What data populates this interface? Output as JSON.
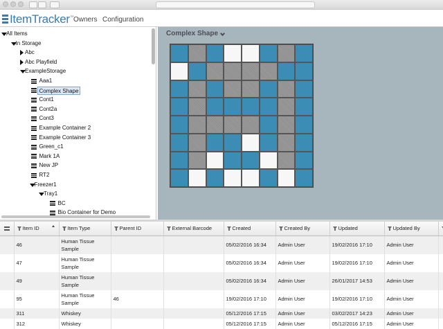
{
  "app": {
    "logo": "ItemTracker",
    "trademark": "™",
    "nav": [
      "Owners",
      "Configuration"
    ]
  },
  "tree": [
    {
      "label": "All Items",
      "expanded": true,
      "children": [
        {
          "label": "In Storage",
          "expanded": true,
          "children": [
            {
              "label": "Abc",
              "expanded": false
            },
            {
              "label": "Abc Playfield",
              "expanded": false
            },
            {
              "label": "ExampleStorage",
              "expanded": true,
              "children": [
                {
                  "label": "Aaa1"
                },
                {
                  "label": "Complex Shape",
                  "selected": true
                },
                {
                  "label": "Cont1"
                },
                {
                  "label": "Cont2a"
                },
                {
                  "label": "Cont3"
                },
                {
                  "label": "Example Container 2"
                },
                {
                  "label": "Example Container 3"
                },
                {
                  "label": "Green_c1"
                },
                {
                  "label": "Mark 1A"
                },
                {
                  "label": "New JP"
                },
                {
                  "label": "RT2"
                },
                {
                  "label": "Freezer1",
                  "expanded": true,
                  "children": [
                    {
                      "label": "Tray1",
                      "expanded": true,
                      "children": [
                        {
                          "label": "BC"
                        },
                        {
                          "label": "Bio Container for Demo"
                        }
                      ]
                    }
                  ]
                }
              ]
            }
          ]
        }
      ]
    }
  ],
  "panel": {
    "title": "Complex Shape"
  },
  "table": {
    "columns": [
      "Item ID",
      "Item Type",
      "Parent ID",
      "External Barcode",
      "Created",
      "Created By",
      "Updated",
      "Updated By"
    ],
    "rows": [
      [
        46,
        "Human Tissue Sample",
        null,
        null,
        "05/02/2016 16:34",
        "Admin User",
        "19/02/2016 17:10",
        "Admin User"
      ],
      [
        47,
        "Human Tissue Sample",
        null,
        null,
        "05/02/2016 16:34",
        "Admin User",
        "19/02/2016 17:10",
        "Admin User"
      ],
      [
        49,
        "Human Tissue Sample",
        null,
        null,
        "05/02/2016 16:34",
        "Admin User",
        "26/01/2017 14:53",
        "Admin User"
      ],
      [
        95,
        "Human Tissue Sample",
        46,
        null,
        "19/02/2016 17:10",
        "Admin User",
        "19/02/2016 17:10",
        "Admin User"
      ],
      [
        311,
        "Whiskey",
        null,
        null,
        "05/12/2016 17:15",
        "Admin User",
        "03/02/2017 14:23",
        "Admin User"
      ],
      [
        312,
        "Whiskey",
        null,
        null,
        "05/12/2016 17:15",
        "Admin User",
        "05/12/2016 17:15",
        "Admin User"
      ]
    ]
  }
}
